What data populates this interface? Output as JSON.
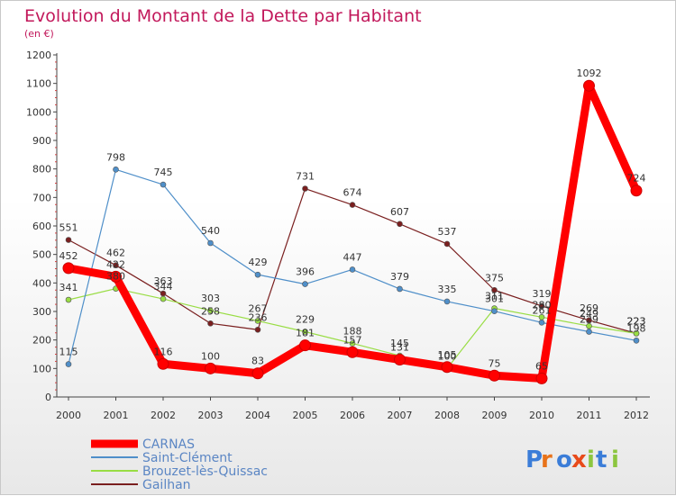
{
  "chart_data": {
    "type": "line",
    "title": "Evolution du Montant de la Dette par Habitant",
    "subtitle": "(en €)",
    "x": [
      "2000",
      "2001",
      "2002",
      "2003",
      "2004",
      "2005",
      "2006",
      "2007",
      "2008",
      "2009",
      "2010",
      "2011",
      "2012"
    ],
    "ylim": [
      0,
      1200
    ],
    "yticks": [
      0,
      100,
      200,
      300,
      400,
      500,
      600,
      700,
      800,
      900,
      1000,
      1100,
      1200
    ],
    "grid": false,
    "legend_position": "bottom-left",
    "series": [
      {
        "name": "CARNAS",
        "color": "#ff0000",
        "values": [
          452,
          422,
          116,
          100,
          83,
          181,
          157,
          131,
          105,
          75,
          65,
          1092,
          724
        ],
        "labels": [
          "452",
          "422",
          "116",
          "100",
          "83",
          "181",
          "157",
          "131",
          "105",
          "75",
          "65",
          "1092",
          "724"
        ]
      },
      {
        "name": "Saint-Clément",
        "color": "#4f8fc9",
        "values": [
          115,
          798,
          745,
          540,
          429,
          396,
          447,
          379,
          335,
          301,
          261,
          229,
          198
        ],
        "labels": [
          "115",
          "798",
          "745",
          "540",
          "429",
          "396",
          "447",
          "379",
          "335",
          "301",
          "261",
          "229",
          "198"
        ]
      },
      {
        "name": "Brouzet-lès-Quissac",
        "color": "#99dd44",
        "values": [
          341,
          380,
          344,
          303,
          267,
          229,
          188,
          145,
          100,
          311,
          280,
          249,
          223
        ],
        "labels": [
          "341",
          "380",
          "344",
          "303",
          "267",
          "229",
          "188",
          "145",
          "100",
          "311",
          "280",
          "249",
          "223"
        ]
      },
      {
        "name": "Gailhan",
        "color": "#7a1f1f",
        "values": [
          551,
          462,
          363,
          258,
          236,
          731,
          674,
          607,
          537,
          375,
          319,
          269,
          223
        ],
        "labels": [
          "551",
          "462",
          "363",
          "258",
          "236",
          "731",
          "674",
          "607",
          "537",
          "375",
          "319",
          "269",
          "223"
        ]
      }
    ]
  },
  "logo": {
    "text": "Proxiti"
  }
}
